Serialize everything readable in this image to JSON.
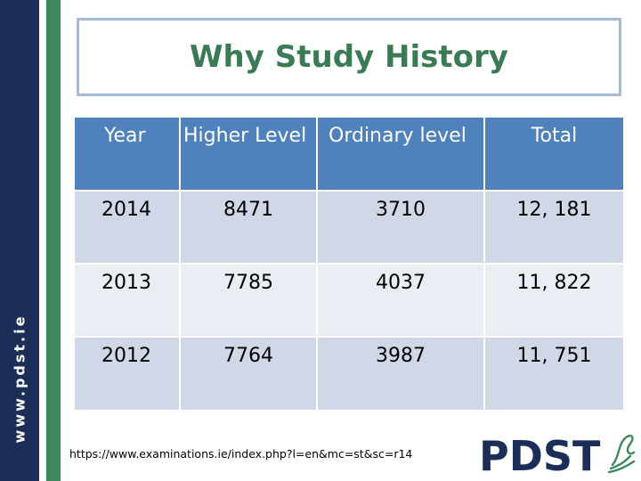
{
  "sidebar": {
    "text": "www.pdst.ie",
    "bar_color": "#1c2d57",
    "accent_color": "#3e8a5e"
  },
  "title": "Why Study History",
  "table": {
    "headers": [
      "Year",
      "Higher Level",
      "Ordinary level",
      "Total"
    ],
    "rows": [
      {
        "year": "2014",
        "higher": "8471",
        "ordinary": "3710",
        "total": "12, 181"
      },
      {
        "year": "2013",
        "higher": "7785",
        "ordinary": "4037",
        "total": "11, 822"
      },
      {
        "year": "2012",
        "higher": "7764",
        "ordinary": "3987",
        "total": "11, 751"
      }
    ],
    "header_color": "#4f81bd",
    "row_colors": [
      "#d0d8e8",
      "#e9edf4"
    ]
  },
  "footer": {
    "url": "https://www.examinations.ie/index.php?l=en&mc=st&sc=r14"
  },
  "logo": {
    "text": "PDST",
    "text_color": "#1c2d57",
    "swirl_color": "#3e8a5e",
    "icon": "pdst-logo"
  }
}
